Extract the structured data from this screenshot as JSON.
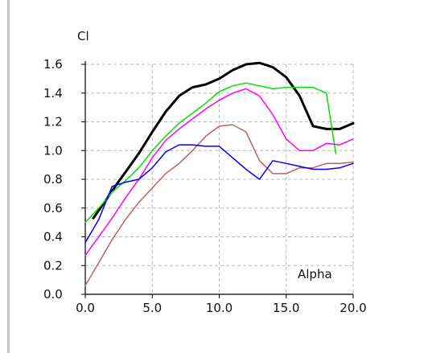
{
  "chart_data": {
    "type": "line",
    "ylabel": "Cl",
    "xlabel": "Alpha",
    "xlim": [
      0,
      20
    ],
    "ylim": [
      0,
      1.6
    ],
    "x_ticks": [
      0,
      5,
      10,
      15,
      20
    ],
    "x_tick_labels": [
      "0.0",
      "5.0",
      "10.0",
      "15.0",
      "20.0"
    ],
    "y_ticks": [
      0,
      0.2,
      0.4,
      0.6,
      0.8,
      1.0,
      1.2,
      1.4,
      1.6
    ],
    "y_tick_labels": [
      "0.0",
      "0.2",
      "0.4",
      "0.6",
      "0.8",
      "1.0",
      "1.2",
      "1.4",
      "1.6"
    ],
    "grid": true,
    "series": [
      {
        "color": "#000000",
        "width": 3,
        "x": [
          0.6,
          1.5,
          2.3,
          3.0,
          4.0,
          5.0,
          6.0,
          7.0,
          8.0,
          9.0,
          10.0,
          11.0,
          12.0,
          13.0,
          14.0,
          15.0,
          16.0,
          17.0,
          18.0,
          19.0,
          20.0
        ],
        "y": [
          0.53,
          0.65,
          0.76,
          0.85,
          0.98,
          1.13,
          1.27,
          1.38,
          1.44,
          1.46,
          1.5,
          1.56,
          1.6,
          1.61,
          1.58,
          1.51,
          1.38,
          1.17,
          1.15,
          1.15,
          1.19
        ]
      },
      {
        "color": "#00e000",
        "width": 1.5,
        "x": [
          0.0,
          1.0,
          2.0,
          3.0,
          4.0,
          5.0,
          6.0,
          7.0,
          8.0,
          9.0,
          10.0,
          11.0,
          12.0,
          13.0,
          14.0,
          15.0,
          16.0,
          17.0,
          18.0,
          18.7
        ],
        "y": [
          0.5,
          0.6,
          0.71,
          0.79,
          0.88,
          1.0,
          1.1,
          1.19,
          1.26,
          1.33,
          1.41,
          1.45,
          1.47,
          1.45,
          1.43,
          1.44,
          1.44,
          1.44,
          1.4,
          0.98
        ]
      },
      {
        "color": "#ff00ff",
        "width": 1.5,
        "x": [
          0.0,
          1.0,
          2.0,
          3.0,
          4.0,
          5.0,
          6.0,
          7.0,
          8.0,
          9.0,
          10.0,
          11.0,
          12.0,
          13.0,
          14.0,
          15.0,
          16.0,
          17.0,
          18.0,
          19.0,
          20.0
        ],
        "y": [
          0.27,
          0.4,
          0.53,
          0.67,
          0.8,
          0.95,
          1.07,
          1.15,
          1.22,
          1.29,
          1.35,
          1.4,
          1.43,
          1.38,
          1.25,
          1.08,
          1.0,
          1.0,
          1.05,
          1.04,
          1.08
        ]
      },
      {
        "color": "#c06060",
        "width": 1.5,
        "x": [
          0.0,
          1.0,
          2.0,
          3.0,
          4.0,
          5.0,
          6.0,
          7.0,
          8.0,
          9.0,
          10.0,
          11.0,
          12.0,
          13.0,
          14.0,
          15.0,
          16.0,
          17.0,
          18.0,
          19.0,
          20.0
        ],
        "y": [
          0.06,
          0.22,
          0.38,
          0.52,
          0.64,
          0.74,
          0.84,
          0.91,
          1.0,
          1.1,
          1.17,
          1.18,
          1.13,
          0.93,
          0.84,
          0.84,
          0.88,
          0.88,
          0.91,
          0.91,
          0.92
        ]
      },
      {
        "color": "#0000ff",
        "width": 1.5,
        "x": [
          0.0,
          1.0,
          2.0,
          3.0,
          4.0,
          5.0,
          6.0,
          7.0,
          8.0,
          9.0,
          10.0,
          11.0,
          12.0,
          13.0,
          14.0,
          15.0,
          16.0,
          17.0,
          18.0,
          19.0,
          20.0
        ],
        "y": [
          0.36,
          0.52,
          0.75,
          0.78,
          0.8,
          0.88,
          0.99,
          1.04,
          1.04,
          1.03,
          1.03,
          0.95,
          0.87,
          0.8,
          0.93,
          0.91,
          0.89,
          0.87,
          0.87,
          0.88,
          0.91
        ]
      }
    ]
  }
}
